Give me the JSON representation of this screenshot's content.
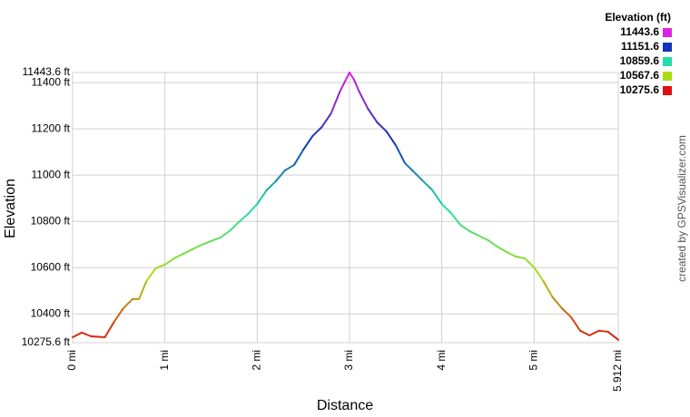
{
  "chart_data": {
    "type": "line",
    "x_label": "Distance",
    "y_label": "Elevation",
    "credit": "created by GPSVisualizer.com",
    "legend_title": "Elevation (ft)",
    "color_scale": [
      {
        "value": 11443.6,
        "color": "#dd22dd"
      },
      {
        "value": 11151.6,
        "color": "#1133bb"
      },
      {
        "value": 10859.6,
        "color": "#22ddaa"
      },
      {
        "value": 10567.6,
        "color": "#aadd11"
      },
      {
        "value": 10275.6,
        "color": "#dd1111"
      }
    ],
    "xlim": [
      0,
      5.912
    ],
    "ylim": [
      10275.6,
      11443.6
    ],
    "grid": true,
    "xticks": [
      {
        "value": 0,
        "label": "0 mi"
      },
      {
        "value": 1,
        "label": "1 mi"
      },
      {
        "value": 2,
        "label": "2 mi"
      },
      {
        "value": 3,
        "label": "3 mi"
      },
      {
        "value": 4,
        "label": "4 mi"
      },
      {
        "value": 5,
        "label": "5 mi"
      },
      {
        "value": 5.912,
        "label": "5.912 mi"
      }
    ],
    "yticks": [
      {
        "value": 10275.6,
        "label": "10275.6 ft"
      },
      {
        "value": 10400,
        "label": "10400 ft"
      },
      {
        "value": 10600,
        "label": "10600 ft"
      },
      {
        "value": 10800,
        "label": "10800 ft"
      },
      {
        "value": 11000,
        "label": "11000 ft"
      },
      {
        "value": 11200,
        "label": "11200 ft"
      },
      {
        "value": 11400,
        "label": "11400 ft"
      },
      {
        "value": 11443.6,
        "label": "11443.6 ft"
      }
    ],
    "x": [
      0,
      0.1,
      0.2,
      0.35,
      0.45,
      0.55,
      0.65,
      0.72,
      0.8,
      0.9,
      1.0,
      1.1,
      1.2,
      1.3,
      1.4,
      1.5,
      1.6,
      1.7,
      1.8,
      1.9,
      2.0,
      2.1,
      2.2,
      2.3,
      2.4,
      2.5,
      2.6,
      2.7,
      2.8,
      2.9,
      2.95,
      3.0,
      3.05,
      3.1,
      3.2,
      3.3,
      3.4,
      3.5,
      3.6,
      3.7,
      3.8,
      3.9,
      4.0,
      4.1,
      4.2,
      4.3,
      4.4,
      4.5,
      4.6,
      4.7,
      4.8,
      4.9,
      5.0,
      5.1,
      5.2,
      5.3,
      5.4,
      5.5,
      5.6,
      5.7,
      5.8,
      5.912
    ],
    "values": [
      10299,
      10319,
      10303,
      10299,
      10366,
      10425,
      10464,
      10464,
      10542,
      10597,
      10613,
      10640,
      10660,
      10680,
      10699,
      10715,
      10730,
      10758,
      10797,
      10832,
      10875,
      10934,
      10973,
      11020,
      11044,
      11110,
      11169,
      11208,
      11267,
      11365,
      11404,
      11443.6,
      11412,
      11365,
      11287,
      11228,
      11189,
      11130,
      11052,
      11013,
      10973,
      10934,
      10875,
      10836,
      10785,
      10758,
      10738,
      10719,
      10691,
      10668,
      10648,
      10640,
      10601,
      10542,
      10472,
      10425,
      10386,
      10327,
      10307,
      10327,
      10323,
      10288
    ]
  }
}
